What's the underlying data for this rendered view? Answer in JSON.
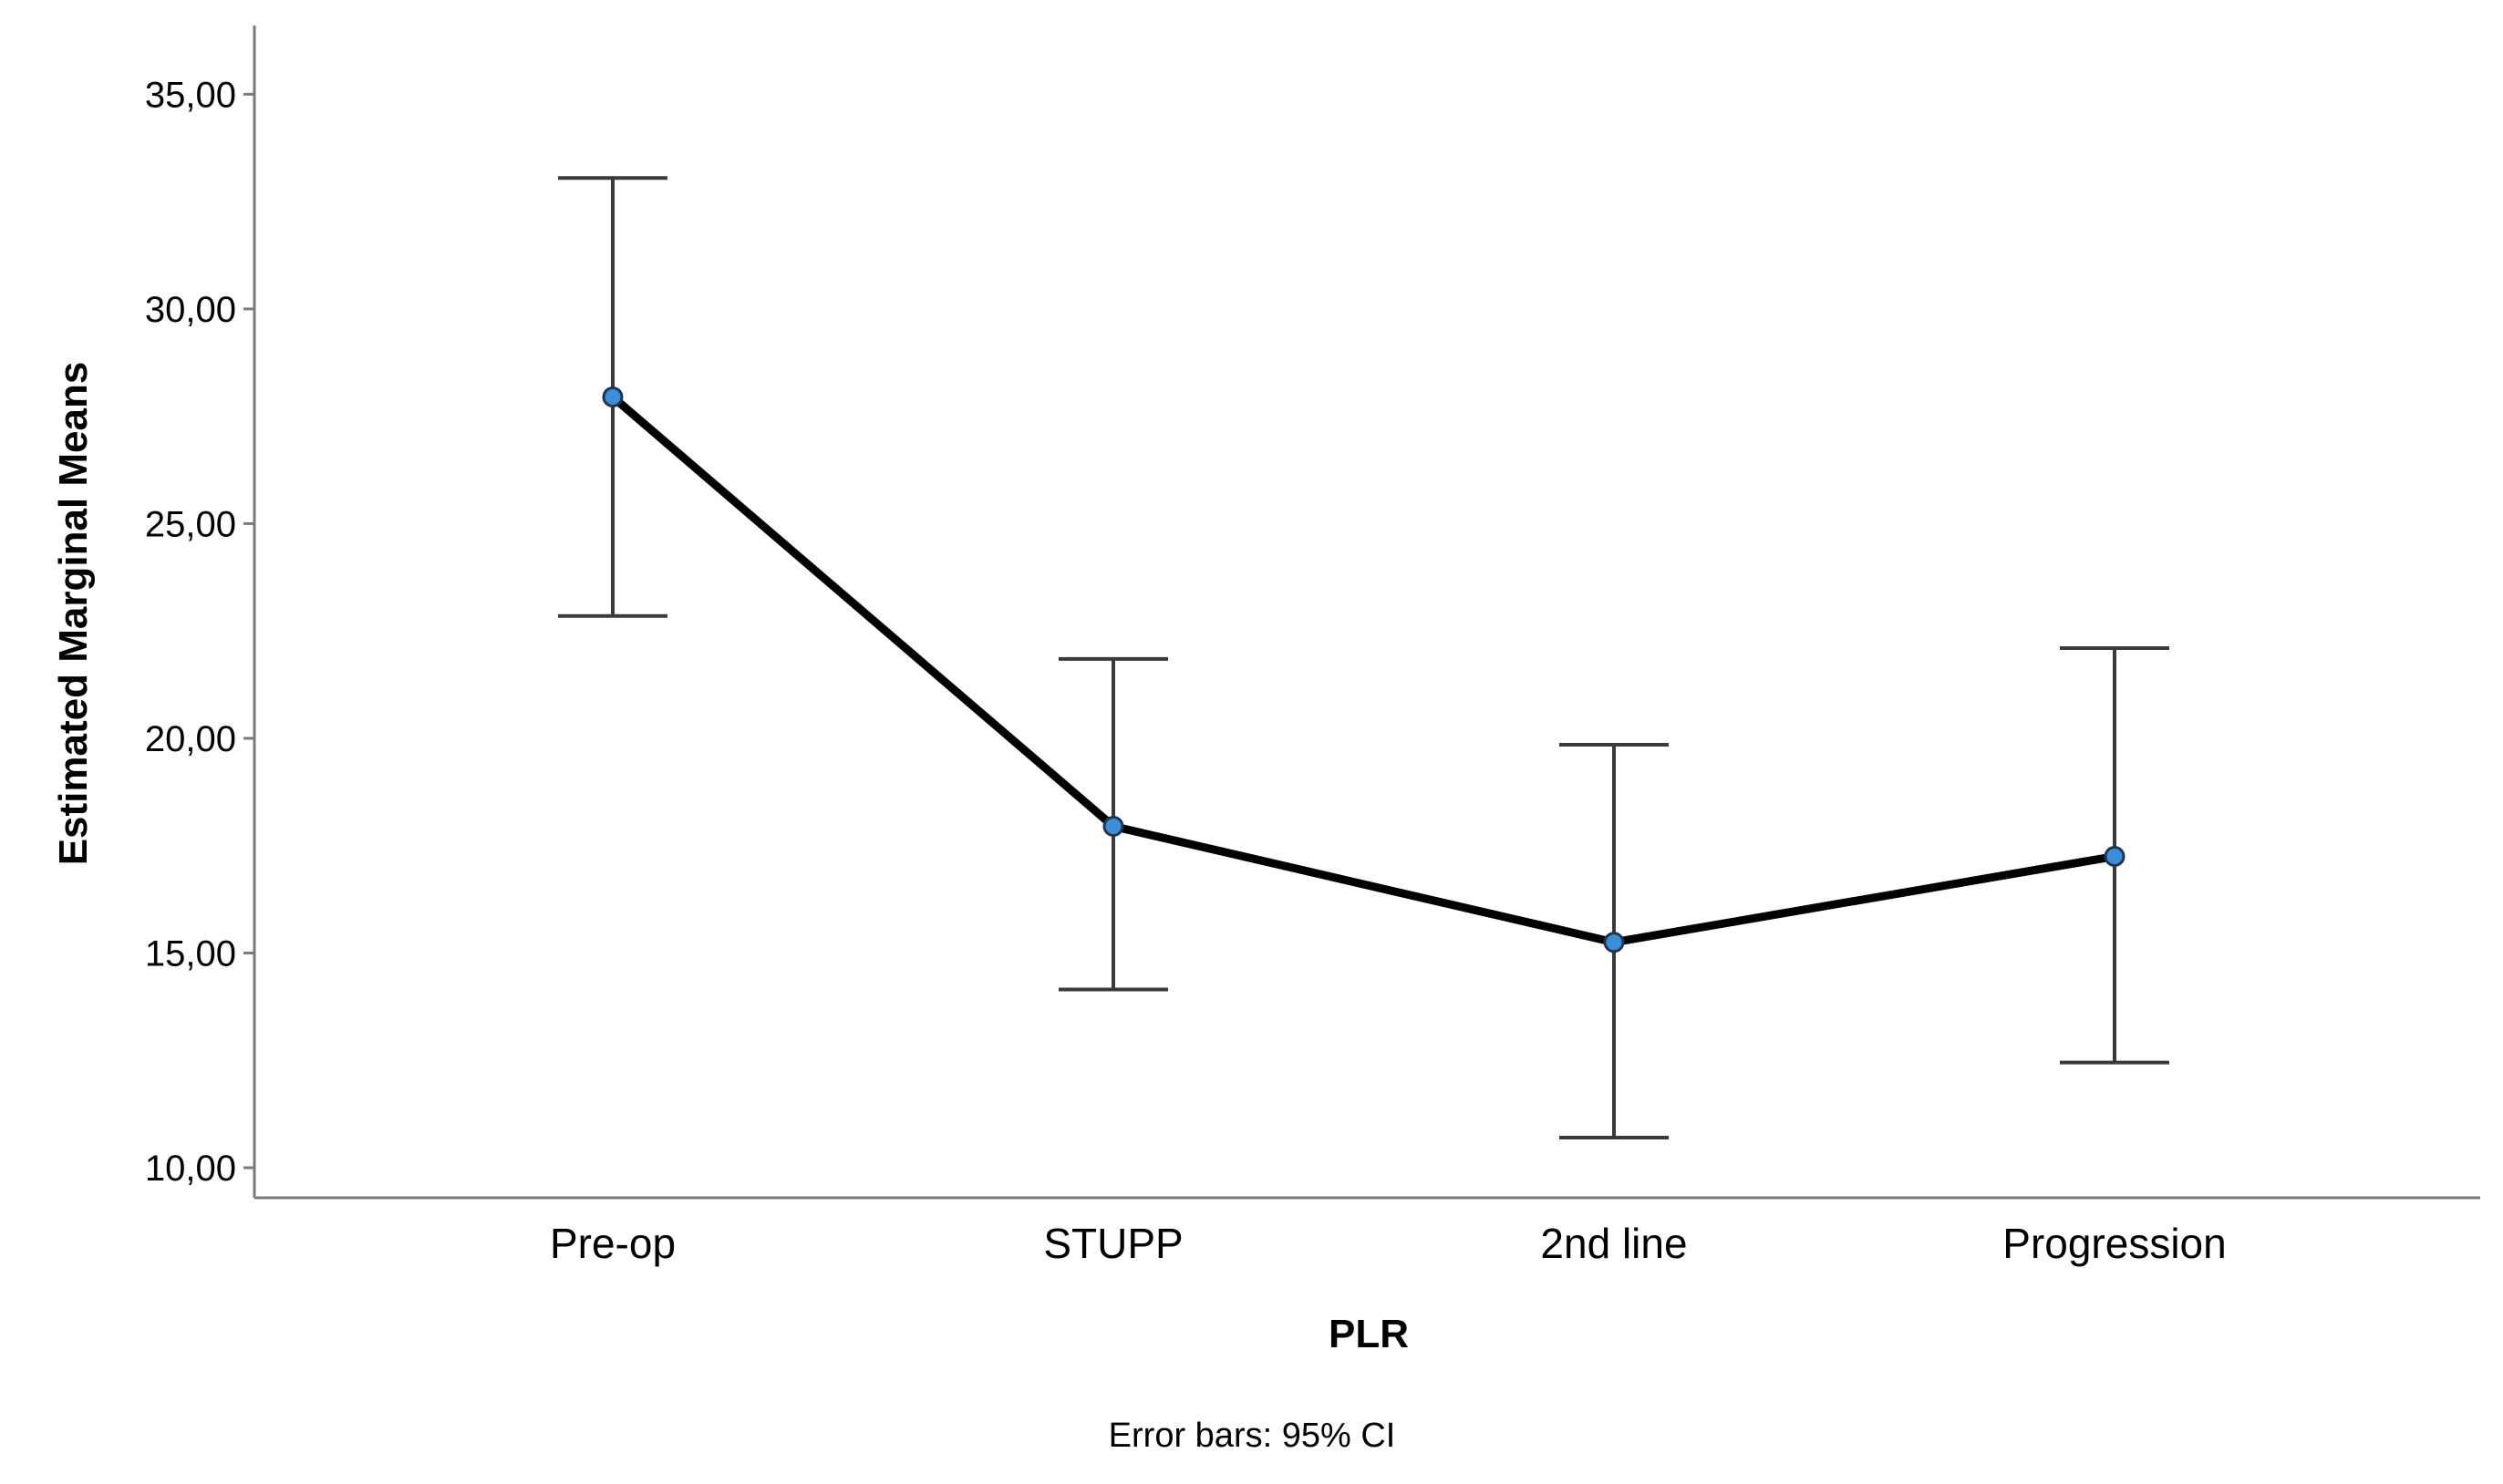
{
  "chart_data": {
    "type": "line",
    "title": "",
    "xlabel": "PLR",
    "ylabel": "Estimated Marginal Means",
    "categories": [
      "Pre-op",
      "STUPP",
      "2nd line",
      "Progression"
    ],
    "series": [
      {
        "name": "Estimated Marginal Means",
        "values": [
          27.95,
          17.95,
          15.25,
          17.25
        ],
        "ci_low": [
          22.85,
          14.15,
          10.7,
          12.45
        ],
        "ci_high": [
          33.05,
          21.85,
          19.85,
          22.1
        ]
      }
    ],
    "yticks": [
      10,
      15,
      20,
      25,
      30,
      35
    ],
    "ytick_labels": [
      "10,00",
      "15,00",
      "20,00",
      "25,00",
      "30,00",
      "35,00"
    ],
    "ylim": [
      9.3,
      36.6
    ],
    "grid": false,
    "footnote": "Error bars: 95% CI",
    "colors": {
      "line": "#000000",
      "marker_fill": "#3a8fd8",
      "marker_edge": "#1f3550",
      "errorbar": "#3a3a3a",
      "axis": "#7a7a7a"
    }
  }
}
